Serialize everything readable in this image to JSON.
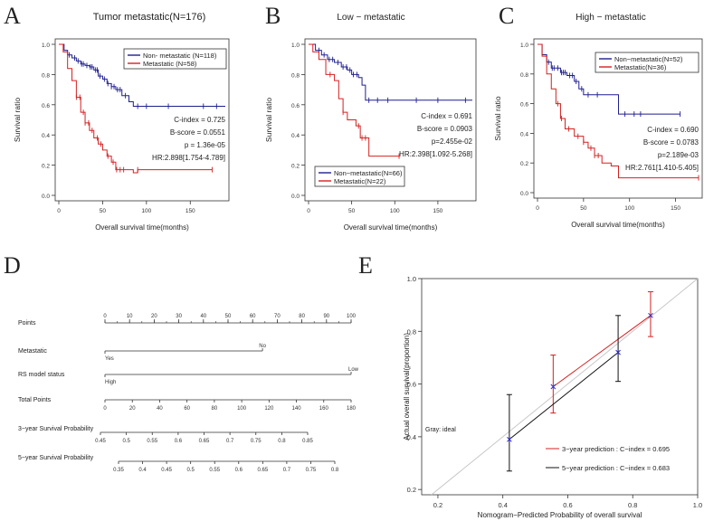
{
  "chart_data": [
    {
      "type": "line",
      "panel": "A",
      "title": "Tumor  metastatic(N=176)",
      "xlabel": "Overall survival time(months)",
      "ylabel": "Survival ratio",
      "xlim": [
        0,
        190
      ],
      "ylim": [
        0,
        1.0
      ],
      "xticks": [
        "0",
        "50",
        "100",
        "150"
      ],
      "yticks": [
        "0.0",
        "0.2",
        "0.4",
        "0.6",
        "0.8",
        "1.0"
      ],
      "legend": {
        "placement": "top-right",
        "entries": [
          "Non- metastatic (N=118)",
          "Metastatic (N=58)"
        ]
      },
      "annotations": [
        "C-index = 0.725",
        "B-score = 0.0551",
        "p = 1.36e-05",
        "HR:2.898[1.754-4.789]"
      ],
      "series": [
        {
          "name": "Non- metastatic (N=118)",
          "color": "#1f1f8f",
          "points": [
            [
              0,
              1.0
            ],
            [
              6,
              0.96
            ],
            [
              10,
              0.93
            ],
            [
              15,
              0.91
            ],
            [
              20,
              0.89
            ],
            [
              25,
              0.87
            ],
            [
              30,
              0.86
            ],
            [
              35,
              0.85
            ],
            [
              40,
              0.83
            ],
            [
              45,
              0.79
            ],
            [
              50,
              0.77
            ],
            [
              55,
              0.74
            ],
            [
              60,
              0.72
            ],
            [
              65,
              0.7
            ],
            [
              72,
              0.66
            ],
            [
              80,
              0.62
            ],
            [
              85,
              0.59
            ],
            [
              190,
              0.59
            ]
          ],
          "censors": [
            12,
            18,
            22,
            26,
            28,
            32,
            36,
            38,
            42,
            44,
            47,
            52,
            56,
            60,
            63,
            67,
            70,
            76,
            90,
            100,
            125,
            165,
            180
          ]
        },
        {
          "name": "Metastatic (N=58)",
          "color": "#d42020",
          "points": [
            [
              0,
              1.0
            ],
            [
              5,
              0.95
            ],
            [
              10,
              0.84
            ],
            [
              15,
              0.76
            ],
            [
              20,
              0.65
            ],
            [
              25,
              0.55
            ],
            [
              30,
              0.48
            ],
            [
              35,
              0.43
            ],
            [
              40,
              0.38
            ],
            [
              45,
              0.34
            ],
            [
              50,
              0.3
            ],
            [
              55,
              0.26
            ],
            [
              60,
              0.22
            ],
            [
              65,
              0.17
            ],
            [
              80,
              0.17
            ],
            [
              85,
              0.15
            ],
            [
              90,
              0.17
            ],
            [
              175,
              0.17
            ]
          ],
          "censors": [
            20,
            24,
            28,
            30,
            34,
            38,
            44,
            48,
            56,
            62,
            66,
            70,
            74,
            90,
            175
          ]
        }
      ]
    },
    {
      "type": "line",
      "panel": "B",
      "title": "Low − metastatic",
      "xlabel": "Overall survival time(months)",
      "ylabel": "Survival ratio",
      "xlim": [
        0,
        190
      ],
      "ylim": [
        0,
        1.0
      ],
      "xticks": [
        "0",
        "50",
        "100",
        "150"
      ],
      "yticks": [
        "0.0",
        "0.2",
        "0.4",
        "0.6",
        "0.8",
        "1.0"
      ],
      "legend": {
        "placement": "bottom-left",
        "entries": [
          "Non−metastatic(N=66)",
          "Metastatic(N=22)"
        ]
      },
      "annotations": [
        "C-index = 0.691",
        "B-score  = 0.0903",
        "p=2.455e-02",
        "HR:2.398[1.092-5.268]"
      ],
      "series": [
        {
          "name": "Non−metastatic(N=66)",
          "color": "#1f1f8f",
          "points": [
            [
              0,
              1.0
            ],
            [
              8,
              0.96
            ],
            [
              15,
              0.93
            ],
            [
              22,
              0.9
            ],
            [
              30,
              0.88
            ],
            [
              38,
              0.85
            ],
            [
              45,
              0.83
            ],
            [
              50,
              0.8
            ],
            [
              58,
              0.78
            ],
            [
              62,
              0.73
            ],
            [
              66,
              0.63
            ],
            [
              190,
              0.63
            ]
          ],
          "censors": [
            12,
            18,
            24,
            28,
            34,
            40,
            44,
            48,
            52,
            56,
            70,
            80,
            92,
            125,
            150,
            182
          ]
        },
        {
          "name": "Metastatic(N=22)",
          "color": "#d42020",
          "points": [
            [
              0,
              1.0
            ],
            [
              5,
              0.95
            ],
            [
              12,
              0.9
            ],
            [
              20,
              0.8
            ],
            [
              30,
              0.76
            ],
            [
              35,
              0.64
            ],
            [
              40,
              0.55
            ],
            [
              45,
              0.5
            ],
            [
              55,
              0.46
            ],
            [
              60,
              0.38
            ],
            [
              70,
              0.26
            ],
            [
              105,
              0.26
            ]
          ],
          "censors": [
            25,
            40,
            58,
            62,
            66,
            105
          ]
        }
      ]
    },
    {
      "type": "line",
      "panel": "C",
      "title": "High − metastatic",
      "xlabel": "Overall survival time(months)",
      "ylabel": "Survival ratio",
      "xlim": [
        0,
        175
      ],
      "ylim": [
        0,
        1.0
      ],
      "xticks": [
        "0",
        "50",
        "100",
        "150"
      ],
      "yticks": [
        "0.0",
        "0.2",
        "0.4",
        "0.6",
        "0.8",
        "1.0"
      ],
      "legend": {
        "placement": "top-right",
        "entries": [
          "Non−metastatic(N=52)",
          "Metastatic(N=36)"
        ]
      },
      "annotations": [
        "C-index = 0.690",
        "B-score  = 0.0783",
        "p=2.189e-03",
        "HR:2.761[1.410-5.405]"
      ],
      "series": [
        {
          "name": "Non−metastatic(N=52)",
          "color": "#1f1f8f",
          "points": [
            [
              0,
              1.0
            ],
            [
              5,
              0.93
            ],
            [
              10,
              0.88
            ],
            [
              15,
              0.84
            ],
            [
              25,
              0.81
            ],
            [
              32,
              0.79
            ],
            [
              40,
              0.75
            ],
            [
              45,
              0.7
            ],
            [
              50,
              0.66
            ],
            [
              60,
              0.66
            ],
            [
              68,
              0.66
            ],
            [
              88,
              0.53
            ],
            [
              155,
              0.53
            ]
          ],
          "censors": [
            12,
            16,
            18,
            22,
            26,
            28,
            30,
            35,
            38,
            42,
            48,
            55,
            65,
            95,
            105,
            112,
            155
          ]
        },
        {
          "name": "Metastatic(N=36)",
          "color": "#d42020",
          "points": [
            [
              0,
              1.0
            ],
            [
              5,
              0.92
            ],
            [
              10,
              0.8
            ],
            [
              15,
              0.7
            ],
            [
              20,
              0.6
            ],
            [
              25,
              0.5
            ],
            [
              30,
              0.43
            ],
            [
              40,
              0.38
            ],
            [
              50,
              0.34
            ],
            [
              55,
              0.3
            ],
            [
              62,
              0.25
            ],
            [
              70,
              0.2
            ],
            [
              80,
              0.18
            ],
            [
              88,
              0.1
            ],
            [
              175,
              0.1
            ]
          ],
          "censors": [
            22,
            26,
            34,
            44,
            50,
            58,
            62,
            66,
            175
          ]
        }
      ]
    },
    {
      "type": "table",
      "panel": "D",
      "kind": "nomogram",
      "rows": [
        {
          "label": "Points",
          "scale": [
            "0",
            "10",
            "20",
            "30",
            "40",
            "50",
            "60",
            "70",
            "80",
            "90",
            "100"
          ]
        },
        {
          "label": "Metastatic",
          "levels": [
            "Yes",
            "No"
          ]
        },
        {
          "label": "RS model status",
          "levels": [
            "High",
            "Low"
          ]
        },
        {
          "label": "Total Points",
          "scale": [
            "0",
            "20",
            "40",
            "60",
            "80",
            "100",
            "120",
            "140",
            "160",
            "180"
          ]
        },
        {
          "label": "3−year Survival Probability",
          "scale": [
            "0.45",
            "0.5",
            "0.55",
            "0.6",
            "0.65",
            "0.7",
            "0.75",
            "0.8",
            "0.85"
          ]
        },
        {
          "label": "5−year Survival Probability",
          "scale": [
            "0.35",
            "0.4",
            "0.45",
            "0.5",
            "0.55",
            "0.6",
            "0.65",
            "0.7",
            "0.75",
            "0.8"
          ]
        }
      ]
    },
    {
      "type": "line",
      "panel": "E",
      "xlabel": "Nomogram−Predicted Probability of overall survival",
      "ylabel": "Actual overall survival(proportion)",
      "xlim": [
        0.15,
        1.0
      ],
      "ylim": [
        0.18,
        1.0
      ],
      "xticks": [
        "0.2",
        "0.4",
        "0.6",
        "0.8",
        "1.0"
      ],
      "yticks": [
        "0.2",
        "0.4",
        "0.6",
        "0.8",
        "1.0"
      ],
      "gray_label": "Gray: ideal",
      "legend": {
        "placement": "bottom-right",
        "entries": [
          "3−year prediction : C−index = 0.695",
          "5−year prediction : C−index = 0.683"
        ]
      },
      "series": [
        {
          "name": "3−year prediction : C−index = 0.695",
          "color": "#d42020",
          "x": [
            0.555,
            0.855
          ],
          "y": [
            0.59,
            0.86
          ],
          "err_low": [
            0.49,
            0.78
          ],
          "err_high": [
            0.71,
            0.95
          ]
        },
        {
          "name": "5−year prediction : C−index = 0.683",
          "color": "#111111",
          "x": [
            0.42,
            0.755
          ],
          "y": [
            0.39,
            0.72
          ],
          "err_low": [
            0.27,
            0.61
          ],
          "err_high": [
            0.56,
            0.86
          ]
        }
      ]
    }
  ]
}
